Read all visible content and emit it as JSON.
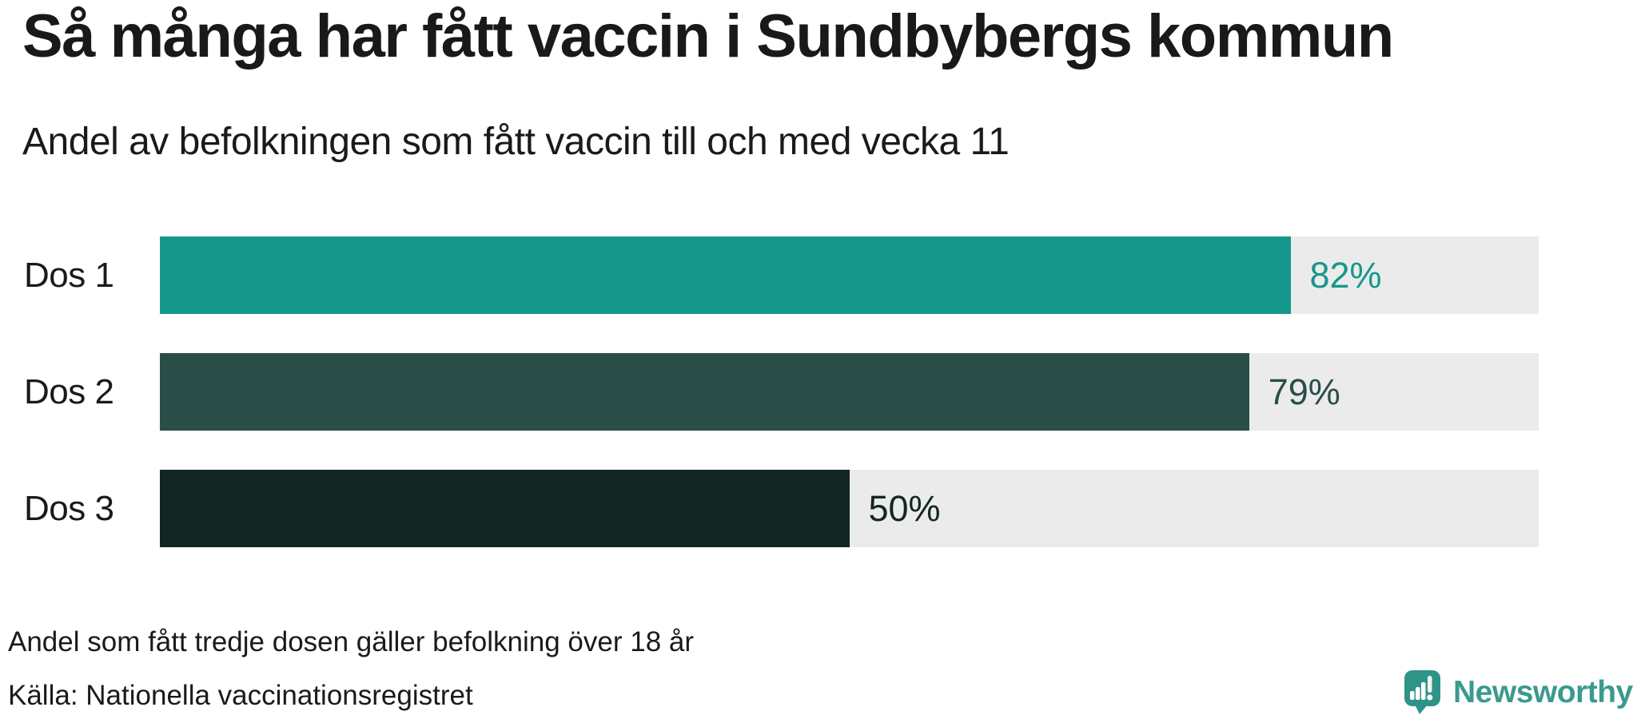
{
  "title": "Så många har fått vaccin i Sundbybergs kommun",
  "subtitle": "Andel av befolkningen som fått vaccin till och med vecka 11",
  "chart_data": {
    "type": "bar",
    "orientation": "horizontal",
    "categories": [
      "Dos 1",
      "Dos 2",
      "Dos 3"
    ],
    "values": [
      82,
      79,
      50
    ],
    "xlim": [
      0,
      100
    ],
    "grid": false,
    "legend": false,
    "track_color": "#EBEBEB",
    "rows": [
      {
        "label": "Dos 1",
        "value": 82,
        "value_label": "82%",
        "color": "#16978B"
      },
      {
        "label": "Dos 2",
        "value": 79,
        "value_label": "79%",
        "color": "#2A4D48"
      },
      {
        "label": "Dos 3",
        "value": 50,
        "value_label": "50%",
        "color": "#132623"
      }
    ]
  },
  "footer": {
    "note": "Andel som fått tredje dosen gäller befolkning över 18 år",
    "source": "Källa: Nationella vaccinationsregistret"
  },
  "logo": {
    "text": "Newsworthy",
    "text_color": "#3A9A8E",
    "mark_color": "#2E9487"
  }
}
